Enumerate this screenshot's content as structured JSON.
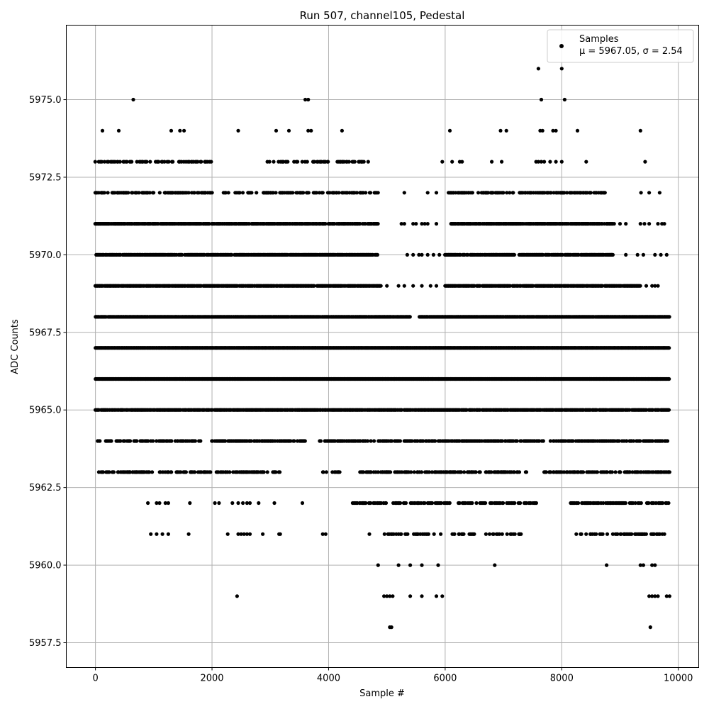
{
  "chart_data": {
    "type": "scatter",
    "title": "Run 507, channel105, Pedestal",
    "xlabel": "Sample #",
    "ylabel": "ADC Counts",
    "xlim": [
      -500,
      10350
    ],
    "ylim": [
      5956.7,
      5977.4
    ],
    "xticks": [
      0,
      2000,
      4000,
      6000,
      8000,
      10000
    ],
    "xtick_labels": [
      "0",
      "2000",
      "4000",
      "6000",
      "8000",
      "10000"
    ],
    "yticks": [
      5957.5,
      5960.0,
      5962.5,
      5965.0,
      5967.5,
      5970.0,
      5972.5,
      5975.0
    ],
    "ytick_labels": [
      "5957.5",
      "5960.0",
      "5962.5",
      "5965.0",
      "5967.5",
      "5970.0",
      "5972.5",
      "5975.0"
    ],
    "grid": true,
    "legend_position": "top-right",
    "marker_color": "#000000",
    "series": [
      {
        "name": "Samples",
        "stats_label": "μ = 5967.05, σ = 2.54",
        "points": [
          [
            7600,
            5976
          ],
          [
            8000,
            5976
          ],
          [
            650,
            5975
          ],
          [
            3600,
            5975
          ],
          [
            3650,
            5975
          ],
          [
            7650,
            5975
          ],
          [
            8050,
            5975
          ],
          [
            120,
            5974
          ],
          [
            400,
            5974
          ],
          [
            1300,
            5974
          ],
          [
            1450,
            5974
          ],
          [
            1520,
            5974
          ],
          [
            2450,
            5974
          ],
          [
            3100,
            5974
          ],
          [
            3320,
            5974
          ],
          [
            3650,
            5974
          ],
          [
            3700,
            5974
          ],
          [
            4230,
            5974
          ],
          [
            6080,
            5974
          ],
          [
            6950,
            5974
          ],
          [
            7050,
            5974
          ],
          [
            7630,
            5974
          ],
          [
            7670,
            5974
          ],
          [
            7850,
            5974
          ],
          [
            7900,
            5974
          ],
          [
            8270,
            5974
          ],
          [
            9350,
            5974
          ],
          [
            5950,
            5973
          ],
          [
            6120,
            5973
          ],
          [
            6250,
            5973
          ],
          [
            6290,
            5973
          ],
          [
            6800,
            5973
          ],
          [
            6970,
            5973
          ],
          [
            7560,
            5973
          ],
          [
            7600,
            5973
          ],
          [
            7650,
            5973
          ],
          [
            7700,
            5973
          ],
          [
            7800,
            5973
          ],
          [
            7900,
            5973
          ],
          [
            8000,
            5973
          ],
          [
            8420,
            5973
          ],
          [
            9430,
            5973
          ],
          [
            5300,
            5972
          ],
          [
            5700,
            5972
          ],
          [
            5850,
            5972
          ],
          [
            9360,
            5972
          ],
          [
            9500,
            5972
          ],
          [
            9680,
            5972
          ],
          [
            5250,
            5971
          ],
          [
            5300,
            5971
          ],
          [
            5450,
            5971
          ],
          [
            5500,
            5971
          ],
          [
            5600,
            5971
          ],
          [
            5650,
            5971
          ],
          [
            5700,
            5971
          ],
          [
            5850,
            5971
          ],
          [
            9000,
            5971
          ],
          [
            9100,
            5971
          ],
          [
            9350,
            5971
          ],
          [
            9420,
            5971
          ],
          [
            9500,
            5971
          ],
          [
            9650,
            5971
          ],
          [
            9720,
            5971
          ],
          [
            9760,
            5971
          ],
          [
            5350,
            5970
          ],
          [
            5450,
            5970
          ],
          [
            5550,
            5970
          ],
          [
            5600,
            5970
          ],
          [
            5700,
            5970
          ],
          [
            5800,
            5970
          ],
          [
            5900,
            5970
          ],
          [
            8850,
            5970
          ],
          [
            9100,
            5970
          ],
          [
            9300,
            5970
          ],
          [
            9400,
            5970
          ],
          [
            9600,
            5970
          ],
          [
            9700,
            5970
          ],
          [
            9800,
            5970
          ],
          [
            5000,
            5969
          ],
          [
            5200,
            5969
          ],
          [
            5300,
            5969
          ],
          [
            5450,
            5969
          ],
          [
            5600,
            5969
          ],
          [
            5750,
            5969
          ],
          [
            5850,
            5969
          ],
          [
            9450,
            5969
          ],
          [
            9550,
            5969
          ],
          [
            9600,
            5969
          ],
          [
            9650,
            5969
          ],
          [
            2430,
            5959
          ],
          [
            4950,
            5959
          ],
          [
            5000,
            5959
          ],
          [
            5050,
            5959
          ],
          [
            5100,
            5959
          ],
          [
            5400,
            5959
          ],
          [
            5600,
            5959
          ],
          [
            5850,
            5959
          ],
          [
            5950,
            5959
          ],
          [
            9500,
            5959
          ],
          [
            9550,
            5959
          ],
          [
            9600,
            5959
          ],
          [
            9650,
            5959
          ],
          [
            9800,
            5959
          ],
          [
            9850,
            5959
          ],
          [
            4850,
            5960
          ],
          [
            5200,
            5960
          ],
          [
            5400,
            5960
          ],
          [
            5600,
            5960
          ],
          [
            5880,
            5960
          ],
          [
            6850,
            5960
          ],
          [
            8770,
            5960
          ],
          [
            9350,
            5960
          ],
          [
            9400,
            5960
          ],
          [
            9550,
            5960
          ],
          [
            9600,
            5960
          ],
          [
            5050,
            5958
          ],
          [
            5080,
            5958
          ],
          [
            9520,
            5958
          ],
          [
            900,
            5962
          ],
          [
            1050,
            5962
          ],
          [
            1100,
            5962
          ],
          [
            1200,
            5962
          ],
          [
            1250,
            5962
          ],
          [
            1620,
            5962
          ],
          [
            2050,
            5962
          ],
          [
            2120,
            5962
          ],
          [
            2350,
            5962
          ],
          [
            2450,
            5962
          ],
          [
            2530,
            5962
          ],
          [
            2600,
            5962
          ],
          [
            2650,
            5962
          ],
          [
            2800,
            5962
          ],
          [
            3070,
            5962
          ],
          [
            3550,
            5962
          ],
          [
            950,
            5961
          ],
          [
            1050,
            5961
          ],
          [
            1150,
            5961
          ],
          [
            1250,
            5961
          ],
          [
            1600,
            5961
          ],
          [
            2270,
            5961
          ],
          [
            2450,
            5961
          ],
          [
            2500,
            5961
          ],
          [
            2550,
            5961
          ],
          [
            2600,
            5961
          ],
          [
            2650,
            5961
          ],
          [
            2870,
            5961
          ],
          [
            3150,
            5961
          ],
          [
            3170,
            5961
          ],
          [
            3900,
            5961
          ],
          [
            3950,
            5961
          ],
          [
            4700,
            5961
          ]
        ],
        "dense_bands": [
          {
            "y": 5973,
            "segments": [
              [
                0,
                1300
              ],
              [
                1300,
                2000
              ],
              [
                2950,
                3500
              ],
              [
                3550,
                4000
              ],
              [
                4100,
                4700
              ]
            ],
            "density": 0.35
          },
          {
            "y": 5972,
            "segments": [
              [
                0,
                1000
              ],
              [
                1100,
                2000
              ],
              [
                2200,
                2300
              ],
              [
                2400,
                4850
              ],
              [
                6050,
                7000
              ],
              [
                7000,
                8750
              ]
            ],
            "density": 0.45
          },
          {
            "y": 5971,
            "segments": [
              [
                0,
                4850
              ],
              [
                6100,
                8900
              ]
            ],
            "density": 0.85
          },
          {
            "y": 5970,
            "segments": [
              [
                0,
                4850
              ],
              [
                6000,
                8900
              ]
            ],
            "density": 0.8
          },
          {
            "y": 5969,
            "segments": [
              [
                0,
                4900
              ],
              [
                6000,
                9350
              ]
            ],
            "density": 0.9
          },
          {
            "y": 5968,
            "segments": [
              [
                0,
                5400
              ],
              [
                5550,
                9850
              ]
            ],
            "density": 0.95
          },
          {
            "y": 5967,
            "segments": [
              [
                0,
                9850
              ]
            ],
            "density": 1.0
          },
          {
            "y": 5966,
            "segments": [
              [
                0,
                9850
              ]
            ],
            "density": 1.0
          },
          {
            "y": 5965,
            "segments": [
              [
                0,
                3500
              ],
              [
                3500,
                3900
              ],
              [
                3900,
                9850
              ]
            ],
            "density": 0.9
          },
          {
            "y": 5964,
            "segments": [
              [
                0,
                900
              ],
              [
                900,
                1800
              ],
              [
                2000,
                3000
              ],
              [
                3000,
                3600
              ],
              [
                3850,
                4700
              ],
              [
                4700,
                9850
              ]
            ],
            "density": 0.55
          },
          {
            "y": 5963,
            "segments": [
              [
                0,
                1000
              ],
              [
                1100,
                2300
              ],
              [
                2350,
                3200
              ],
              [
                3900,
                4200
              ],
              [
                4500,
                7400
              ],
              [
                7700,
                9850
              ]
            ],
            "density": 0.45
          },
          {
            "y": 5962,
            "segments": [
              [
                4400,
                6100
              ],
              [
                6200,
                7000
              ],
              [
                7050,
                7600
              ],
              [
                8150,
                9850
              ]
            ],
            "density": 0.45
          },
          {
            "y": 5961,
            "segments": [
              [
                4900,
                6000
              ],
              [
                6100,
                7300
              ],
              [
                8250,
                9850
              ]
            ],
            "density": 0.3
          }
        ]
      }
    ]
  }
}
